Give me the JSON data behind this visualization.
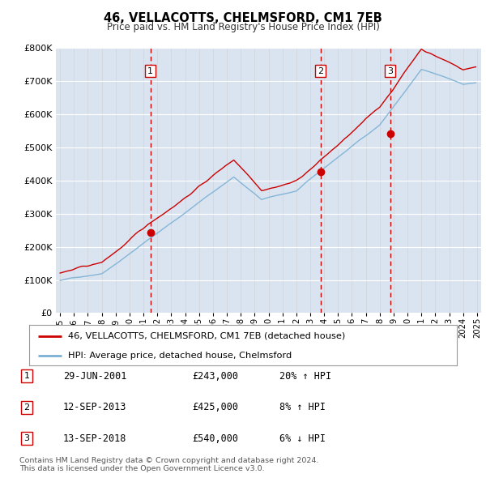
{
  "title": "46, VELLACOTTS, CHELMSFORD, CM1 7EB",
  "subtitle": "Price paid vs. HM Land Registry's House Price Index (HPI)",
  "bg_color": "#dae4f0",
  "grid_color": "#ffffff",
  "grid_color_x": "#cccccc",
  "ylim": [
    0,
    800000
  ],
  "yticks": [
    0,
    100000,
    200000,
    300000,
    400000,
    500000,
    600000,
    700000,
    800000
  ],
  "ytick_labels": [
    "£0",
    "£100K",
    "£200K",
    "£300K",
    "£400K",
    "£500K",
    "£600K",
    "£700K",
    "£800K"
  ],
  "red_line_color": "#cc0000",
  "blue_line_color": "#7ab0d4",
  "vline_color": "#cc0000",
  "sale_years": [
    2001.5,
    2013.75,
    2018.75
  ],
  "sale_prices": [
    243000,
    425000,
    540000
  ],
  "sale_labels": [
    "1",
    "2",
    "3"
  ],
  "legend_entries": [
    "46, VELLACOTTS, CHELMSFORD, CM1 7EB (detached house)",
    "HPI: Average price, detached house, Chelmsford"
  ],
  "table_rows": [
    {
      "num": "1",
      "date": "29-JUN-2001",
      "price": "£243,000",
      "hpi": "20% ↑ HPI"
    },
    {
      "num": "2",
      "date": "12-SEP-2013",
      "price": "£425,000",
      "hpi": "8% ↑ HPI"
    },
    {
      "num": "3",
      "date": "13-SEP-2018",
      "price": "£540,000",
      "hpi": "6% ↓ HPI"
    }
  ],
  "footer": "Contains HM Land Registry data © Crown copyright and database right 2024.\nThis data is licensed under the Open Government Licence v3.0.",
  "xstart_year": 1995,
  "xend_year": 2025
}
